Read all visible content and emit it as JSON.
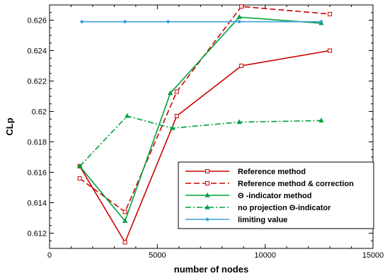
{
  "chart_data": {
    "type": "line",
    "title": "",
    "xlabel": "number of nodes",
    "ylabel": "CLp",
    "xlim": [
      0,
      15000
    ],
    "ylim": [
      0.611,
      0.627
    ],
    "x_ticks": [
      0,
      5000,
      10000,
      15000
    ],
    "x_tick_labels": [
      "0",
      "5000",
      "10000",
      "15000"
    ],
    "y_ticks": [
      0.612,
      0.614,
      0.616,
      0.618,
      0.62,
      0.622,
      0.624,
      0.626
    ],
    "y_tick_labels": [
      "0.612",
      "0.614",
      "0.616",
      "0.618",
      "0.62",
      "0.622",
      "0.624",
      "0.626"
    ],
    "grid": false,
    "legend_position": "bottom-right",
    "series": [
      {
        "name": "Reference method",
        "color": "#cc0000",
        "line_style": "solid",
        "marker": "square",
        "x": [
          1400,
          3500,
          5900,
          8900,
          13000
        ],
        "y": [
          0.6164,
          0.6114,
          0.6197,
          0.623,
          0.624
        ]
      },
      {
        "name": "Reference method & correction",
        "color": "#cc0000",
        "line_style": "dashed",
        "marker": "square",
        "x": [
          1400,
          3500,
          5900,
          8900,
          13000
        ],
        "y": [
          0.6156,
          0.6134,
          0.6213,
          0.6269,
          0.6264
        ]
      },
      {
        "name": "Θ -indicator method",
        "color": "#00a03c",
        "line_style": "solid",
        "marker": "triangle",
        "x": [
          1400,
          3500,
          5600,
          8800,
          12600
        ],
        "y": [
          0.6164,
          0.6128,
          0.6212,
          0.6262,
          0.6258
        ]
      },
      {
        "name": "no projection Θ-indicator",
        "color": "#00a03c",
        "line_style": "dashdot",
        "marker": "triangle",
        "x": [
          1400,
          3600,
          5700,
          8800,
          12600
        ],
        "y": [
          0.6164,
          0.6197,
          0.6189,
          0.6193,
          0.6194
        ]
      },
      {
        "name": "limiting value",
        "color": "#3aa0dc",
        "line_style": "solid",
        "marker": "dot",
        "x": [
          1500,
          3500,
          5500,
          8800,
          12600
        ],
        "y": [
          0.6259,
          0.6259,
          0.6259,
          0.6259,
          0.6259
        ]
      }
    ]
  }
}
